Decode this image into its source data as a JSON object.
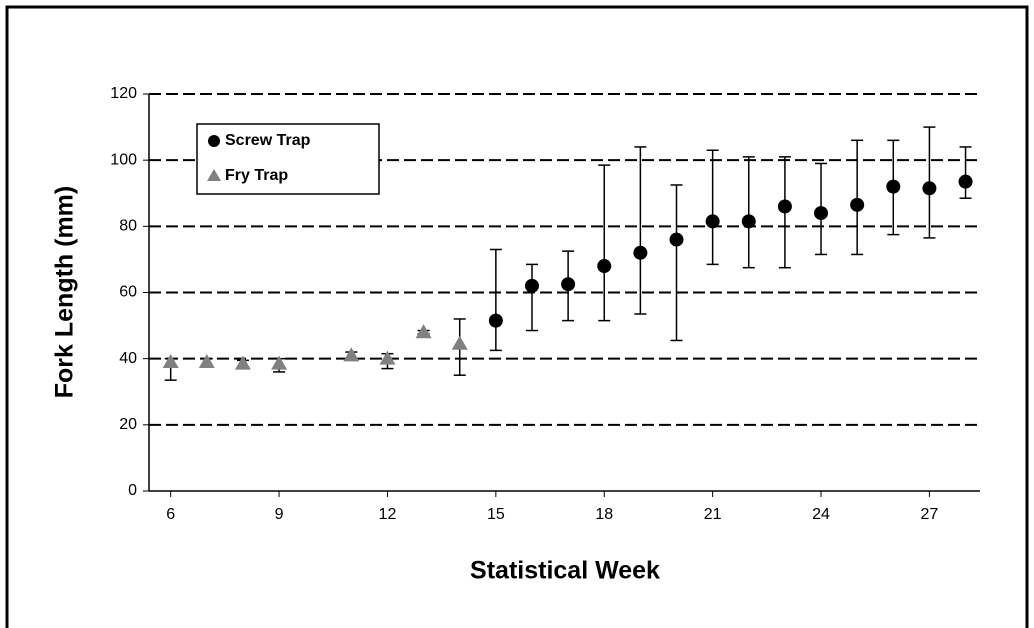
{
  "chart_data": {
    "type": "scatter",
    "x_label": "Statistical Week",
    "y_label": "Fork Length (mm)",
    "xlim": [
      5.4,
      28.4
    ],
    "xticks": [
      6,
      9,
      12,
      15,
      18,
      21,
      24,
      27
    ],
    "ylim": [
      0,
      120
    ],
    "yticks": [
      0,
      20,
      40,
      60,
      80,
      100,
      120
    ],
    "grid": true,
    "legend": "upper left",
    "series": [
      {
        "name": "Screw Trap",
        "color": "#000000",
        "marker": "circle",
        "x": [
          15,
          16,
          17,
          18,
          19,
          20,
          21,
          22,
          23,
          24,
          25,
          26,
          27,
          28
        ],
        "values": [
          51.5,
          62,
          62.5,
          68,
          72,
          76,
          81.5,
          81.5,
          86,
          84,
          86.5,
          92,
          91.5,
          93.5
        ],
        "lower": [
          42.5,
          48.5,
          51.5,
          51.5,
          53.5,
          45.5,
          68.5,
          67.5,
          67.5,
          71.5,
          71.5,
          77.5,
          76.5,
          88.5
        ],
        "upper": [
          73,
          68.5,
          72.5,
          98.5,
          104,
          92.5,
          103,
          101,
          101,
          99,
          106,
          106,
          110,
          104
        ]
      },
      {
        "name": "Fry Trap",
        "color": "#808080",
        "marker": "triangle",
        "x": [
          6,
          7,
          8,
          9,
          11,
          12,
          13,
          14
        ],
        "values": [
          39,
          39,
          38.5,
          38.5,
          41,
          40,
          48,
          44.5
        ],
        "lower": [
          33.5,
          38,
          37.5,
          36,
          39.5,
          37,
          47.5,
          35
        ],
        "upper": [
          40,
          40,
          39.5,
          40,
          42,
          41.5,
          48.5,
          52
        ]
      }
    ]
  }
}
